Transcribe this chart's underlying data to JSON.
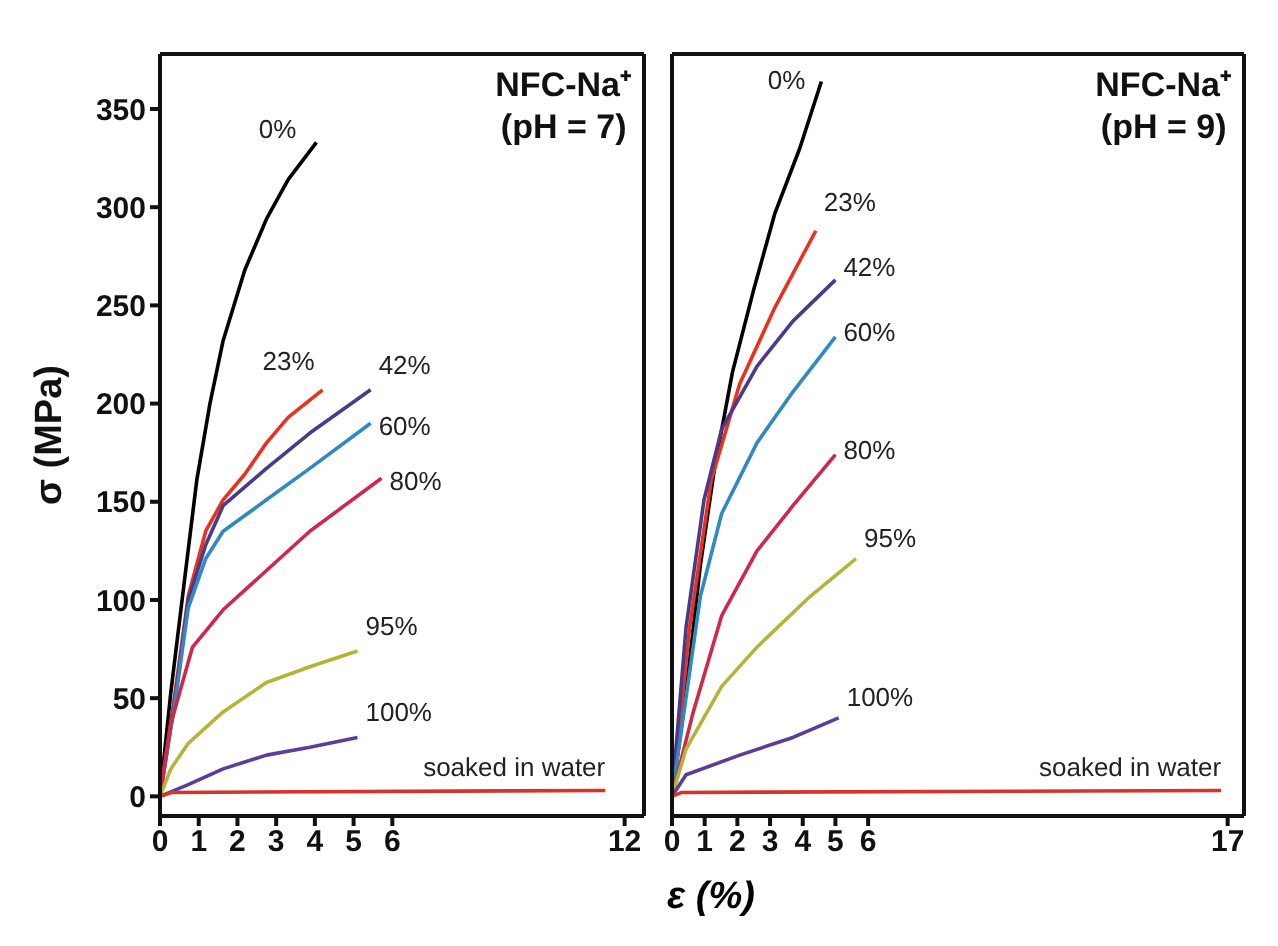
{
  "chart_data": [
    {
      "type": "line",
      "xlabel": "ε (%)",
      "ylabel": "σ (MPa)",
      "annotations": [
        "NFC-Na⁺",
        "(pH = 7)"
      ],
      "xlim": [
        0,
        12.5
      ],
      "xticks": [
        0,
        1,
        2,
        3,
        4,
        5,
        6,
        12
      ],
      "ylim": [
        -10,
        378
      ],
      "yticks": [
        0,
        50,
        100,
        150,
        200,
        250,
        300,
        350
      ],
      "series": [
        {
          "name": "0%",
          "color": "#000000",
          "x": [
            0,
            0.28,
            0.62,
            0.95,
            1.29,
            1.63,
            2.19,
            2.75,
            3.31,
            4.04
          ],
          "values": [
            0,
            53,
            108,
            161,
            200,
            232,
            268,
            294,
            314,
            333
          ]
        },
        {
          "name": "23%",
          "color": "#e8321e",
          "x": [
            0,
            0.39,
            0.73,
            1.18,
            1.63,
            2.19,
            2.75,
            3.31,
            4.2
          ],
          "values": [
            0,
            53,
            102,
            135,
            151,
            164,
            180,
            193,
            207
          ]
        },
        {
          "name": "42%",
          "color": "#4b3a8c",
          "x": [
            0,
            0.39,
            0.73,
            1.18,
            1.63,
            2.75,
            3.87,
            5.44
          ],
          "values": [
            0,
            50,
            100,
            128,
            148,
            167,
            185,
            207
          ]
        },
        {
          "name": "60%",
          "color": "#2f8ac4",
          "x": [
            0,
            0.39,
            0.73,
            1.18,
            1.63,
            2.75,
            3.87,
            5.44
          ],
          "values": [
            0,
            48,
            96,
            121,
            135,
            151,
            167,
            190
          ]
        },
        {
          "name": "80%",
          "color": "#d0284a",
          "x": [
            0,
            0.28,
            0.84,
            1.63,
            2.75,
            3.87,
            5.72
          ],
          "values": [
            0,
            37,
            76,
            95,
            115,
            135,
            162
          ]
        },
        {
          "name": "95%",
          "color": "#b5b43a",
          "x": [
            0,
            0.28,
            0.73,
            1.63,
            2.75,
            3.87,
            5.1
          ],
          "values": [
            0,
            14,
            27,
            43,
            58,
            66,
            74
          ]
        },
        {
          "name": "100%",
          "color": "#5a3e9a",
          "x": [
            0,
            0.73,
            1.63,
            2.75,
            3.87,
            5.1
          ],
          "values": [
            0,
            6,
            14,
            21,
            25,
            30
          ]
        },
        {
          "name": "soaked in water",
          "color": "#d8322a",
          "x": [
            0,
            0.3,
            11.5
          ],
          "values": [
            0,
            2,
            3
          ]
        }
      ]
    },
    {
      "type": "line",
      "annotations": [
        "NFC-Na⁺",
        "(pH = 9)"
      ],
      "xlim": [
        0,
        17.5
      ],
      "xticks": [
        0,
        1,
        2,
        3,
        4,
        5,
        6,
        17
      ],
      "ylim": [
        -10,
        378
      ],
      "yticks": [
        0,
        50,
        100,
        150,
        200,
        250,
        300,
        350
      ],
      "tick_labels": "x",
      "series": [
        {
          "name": "0%",
          "color": "#000000",
          "x": [
            0,
            0.43,
            0.87,
            1.3,
            1.85,
            2.5,
            3.15,
            3.91,
            4.57
          ],
          "values": [
            0,
            53,
            118,
            167,
            216,
            258,
            297,
            330,
            364
          ]
        },
        {
          "name": "23%",
          "color": "#e8321e",
          "x": [
            0,
            0.54,
            1.2,
            2.07,
            3.15,
            4.4
          ],
          "values": [
            0,
            86,
            161,
            210,
            249,
            288
          ]
        },
        {
          "name": "42%",
          "color": "#4b3a8c",
          "x": [
            0,
            0.43,
            0.98,
            1.52,
            2.6,
            3.7,
            5
          ],
          "values": [
            0,
            86,
            151,
            187,
            219,
            242,
            263
          ]
        },
        {
          "name": "60%",
          "color": "#2f8ac4",
          "x": [
            0,
            0.87,
            1.52,
            2.6,
            3.7,
            5
          ],
          "values": [
            0,
            102,
            144,
            180,
            206,
            234
          ]
        },
        {
          "name": "80%",
          "color": "#d0284a",
          "x": [
            0,
            0.65,
            1.52,
            2.6,
            3.7,
            5
          ],
          "values": [
            0,
            43,
            92,
            125,
            148,
            174
          ]
        },
        {
          "name": "95%",
          "color": "#b5b43a",
          "x": [
            0,
            0.43,
            1.52,
            2.6,
            4.24,
            5.63
          ],
          "values": [
            0,
            24,
            56,
            76,
            102,
            121
          ]
        },
        {
          "name": "100%",
          "color": "#5a3e9a",
          "x": [
            0,
            0.43,
            2.07,
            3.7,
            5.1
          ],
          "values": [
            0,
            11,
            21,
            30,
            40
          ]
        },
        {
          "name": "soaked in water",
          "color": "#d8322a",
          "x": [
            0,
            0.3,
            16.8
          ],
          "values": [
            0,
            2,
            3
          ]
        }
      ]
    }
  ]
}
